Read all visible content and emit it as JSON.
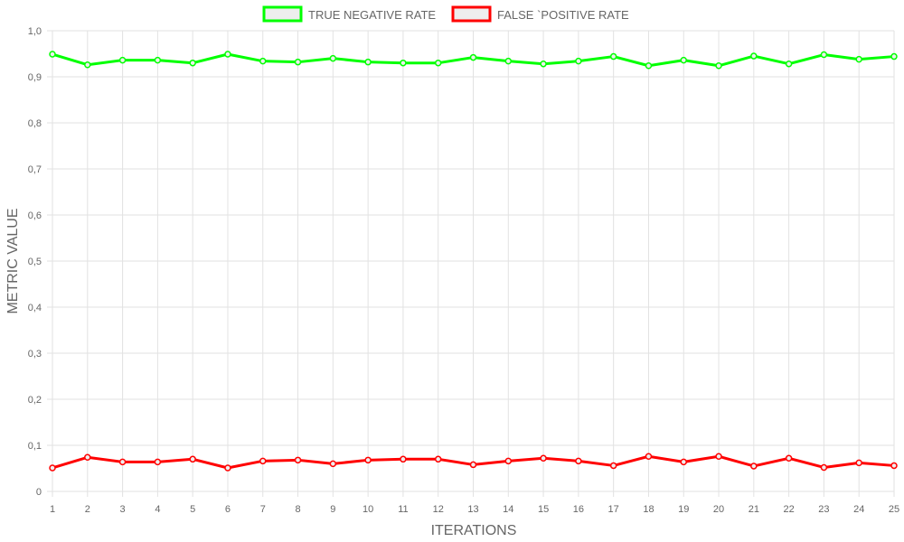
{
  "chart_data": {
    "type": "line",
    "title": "",
    "xlabel": "ITERATIONS",
    "ylabel": "METRIC VALUE",
    "categories": [
      "1",
      "2",
      "3",
      "4",
      "5",
      "6",
      "7",
      "8",
      "9",
      "10",
      "11",
      "12",
      "13",
      "14",
      "15",
      "16",
      "17",
      "18",
      "19",
      "20",
      "21",
      "22",
      "23",
      "24",
      "25"
    ],
    "y_ticks": [
      "0",
      "0,1",
      "0,2",
      "0,3",
      "0,4",
      "0,5",
      "0,6",
      "0,7",
      "0,8",
      "0,9",
      "1,0"
    ],
    "ylim": [
      0,
      1
    ],
    "grid": true,
    "legend_position": "top-center",
    "series": [
      {
        "name": "TRUE NEGATIVE RATE",
        "color": "#00ff00",
        "values": [
          0.949,
          0.926,
          0.936,
          0.936,
          0.93,
          0.949,
          0.934,
          0.932,
          0.94,
          0.932,
          0.93,
          0.93,
          0.942,
          0.934,
          0.928,
          0.934,
          0.944,
          0.924,
          0.936,
          0.924,
          0.945,
          0.928,
          0.948,
          0.938,
          0.944
        ]
      },
      {
        "name": "FALSE `POSITIVE RATE",
        "color": "#ff0000",
        "values": [
          0.051,
          0.074,
          0.064,
          0.064,
          0.07,
          0.051,
          0.066,
          0.068,
          0.06,
          0.068,
          0.07,
          0.07,
          0.058,
          0.066,
          0.072,
          0.066,
          0.056,
          0.076,
          0.064,
          0.076,
          0.055,
          0.072,
          0.052,
          0.062,
          0.056
        ]
      }
    ]
  }
}
